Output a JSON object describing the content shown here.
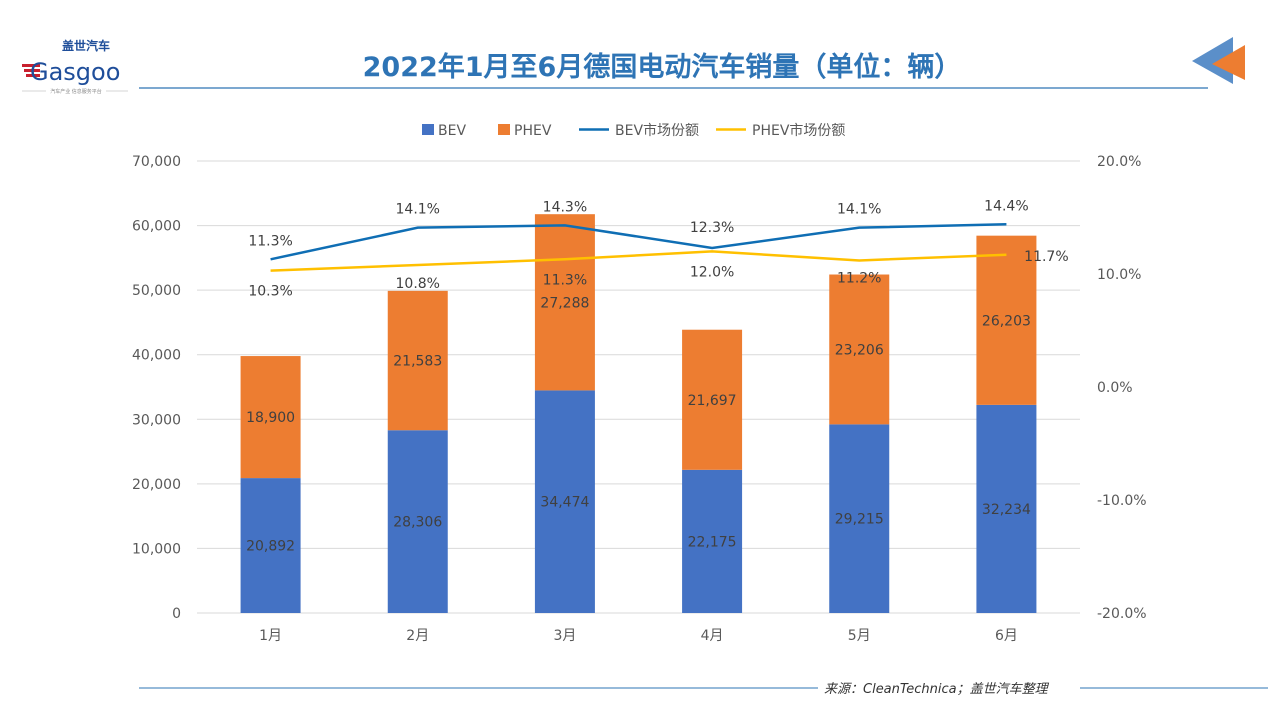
{
  "header": {
    "title": "2022年1月至6月德国电动汽车销量（单位：辆）",
    "logo_text": "Gasgoo",
    "logo_cn": "盖世汽车",
    "logo_tagline": "汽车产业 信息服务平台"
  },
  "footer": {
    "source": "来源：CleanTechnica；盖世汽车整理"
  },
  "colors": {
    "bev": "#4472C4",
    "phev": "#ED7D31",
    "bev_share": "#0F6EB4",
    "phev_share": "#FFC000",
    "title": "#2E74B5",
    "grid": "#D9D9D9"
  },
  "chart_data": {
    "type": "bar",
    "stacked": true,
    "categories": [
      "1月",
      "2月",
      "3月",
      "4月",
      "5月",
      "6月"
    ],
    "series": [
      {
        "name": "BEV",
        "type": "bar",
        "axis": "left",
        "values": [
          20892,
          28306,
          34474,
          22175,
          29215,
          32234
        ],
        "labels": [
          "20,892",
          "28,306",
          "34,474",
          "22,175",
          "29,215",
          "32,234"
        ]
      },
      {
        "name": "PHEV",
        "type": "bar",
        "axis": "left",
        "values": [
          18900,
          21583,
          27288,
          21697,
          23206,
          26203
        ],
        "labels": [
          "18,900",
          "21,583",
          "27,288",
          "21,697",
          "23,206",
          "26,203"
        ]
      },
      {
        "name": "BEV市场份额",
        "type": "line",
        "axis": "right",
        "values": [
          11.3,
          14.1,
          14.3,
          12.3,
          14.1,
          14.4
        ],
        "labels": [
          "11.3%",
          "14.1%",
          "14.3%",
          "12.3%",
          "14.1%",
          "14.4%"
        ]
      },
      {
        "name": "PHEV市场份额",
        "type": "line",
        "axis": "right",
        "values": [
          10.3,
          10.8,
          11.3,
          12.0,
          11.2,
          11.7
        ],
        "labels": [
          "10.3%",
          "10.8%",
          "11.3%",
          "12.0%",
          "11.2%",
          "11.7%"
        ]
      }
    ],
    "y_left": {
      "range": [
        0,
        70000
      ],
      "ticks": [
        "0",
        "10,000",
        "20,000",
        "30,000",
        "40,000",
        "50,000",
        "60,000",
        "70,000"
      ]
    },
    "y_right": {
      "range": [
        -20,
        20
      ],
      "ticks": [
        "-20.0%",
        "-10.0%",
        "0.0%",
        "10.0%",
        "20.0%"
      ]
    },
    "grid": true,
    "legend": "top"
  }
}
